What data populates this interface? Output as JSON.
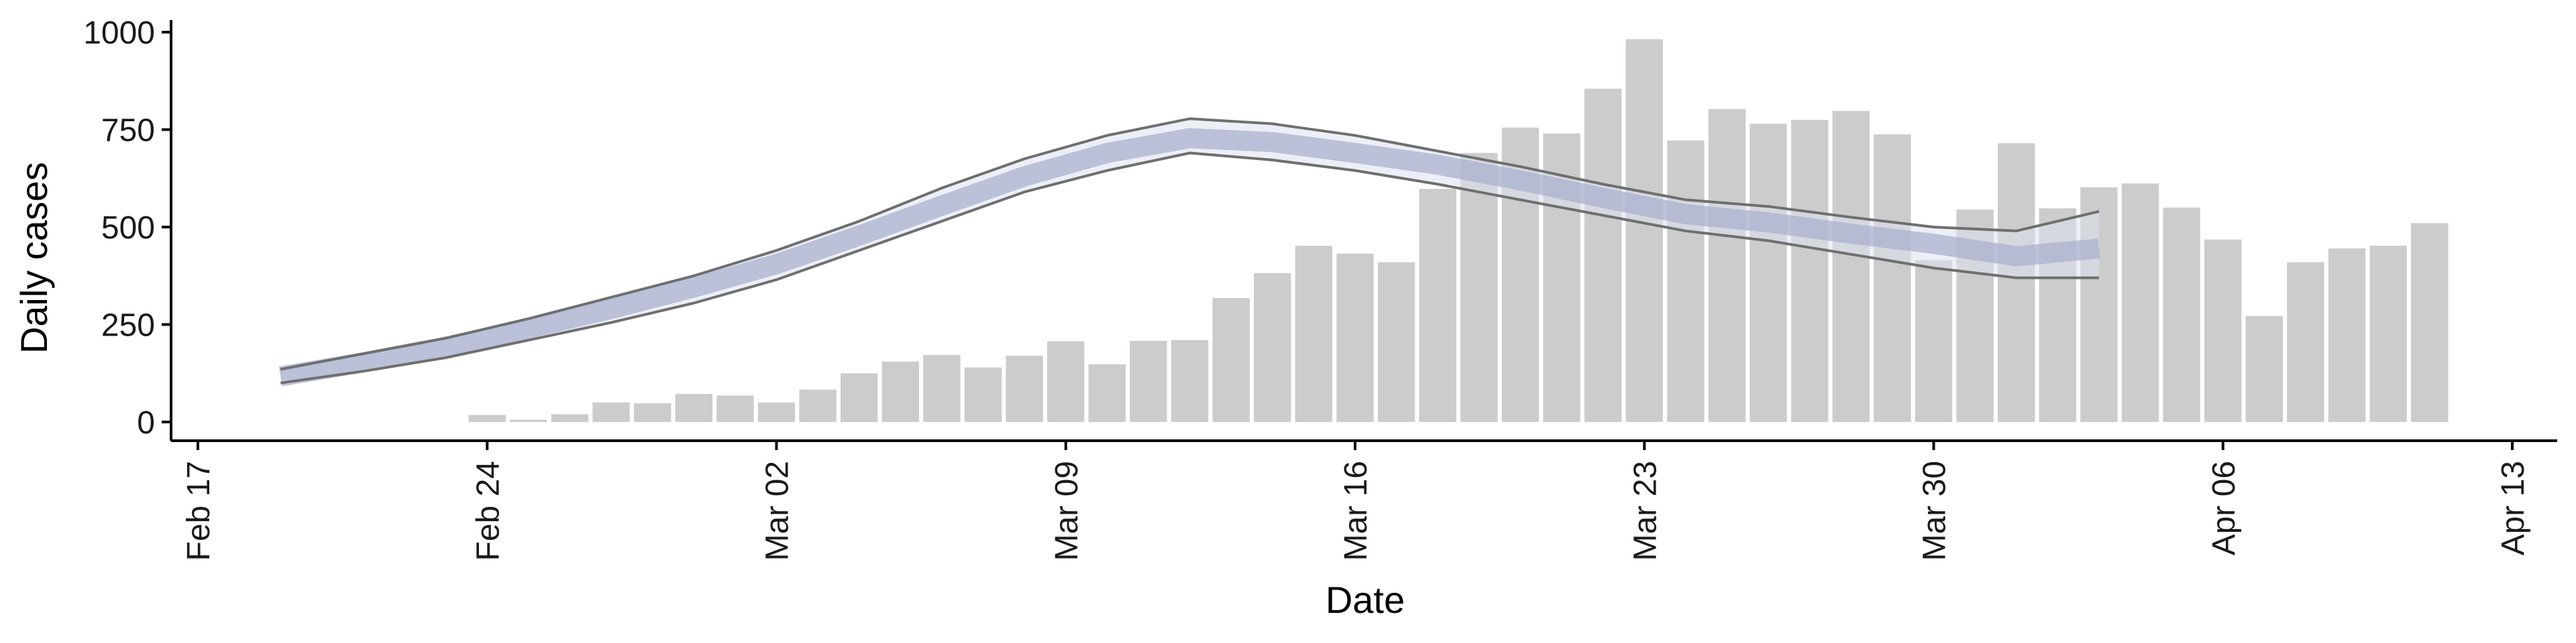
{
  "chart_data": {
    "type": "bar",
    "xlabel": "Date",
    "ylabel": "Daily cases",
    "ylim": [
      0,
      1000
    ],
    "y_ticks": [
      0,
      250,
      500,
      750,
      1000
    ],
    "x_range": [
      "2020-02-17",
      "2020-04-13"
    ],
    "x_ticks": [
      {
        "date": "2020-02-17",
        "label": "Feb 17"
      },
      {
        "date": "2020-02-24",
        "label": "Feb 24"
      },
      {
        "date": "2020-03-02",
        "label": "Mar 02"
      },
      {
        "date": "2020-03-09",
        "label": "Mar 09"
      },
      {
        "date": "2020-03-16",
        "label": "Mar 16"
      },
      {
        "date": "2020-03-23",
        "label": "Mar 23"
      },
      {
        "date": "2020-03-30",
        "label": "Mar 30"
      },
      {
        "date": "2020-04-06",
        "label": "Apr 06"
      },
      {
        "date": "2020-04-13",
        "label": "Apr 13"
      }
    ],
    "grid": false,
    "colors": {
      "bars": "#cccccc",
      "ribbon_outer": "#dde1ee",
      "ribbon_inner": "#a9b2cf",
      "interval_line": "#6f6f6f"
    },
    "bars": {
      "dates": [
        "2020-02-24",
        "2020-02-25",
        "2020-02-26",
        "2020-02-27",
        "2020-02-28",
        "2020-02-29",
        "2020-03-01",
        "2020-03-02",
        "2020-03-03",
        "2020-03-04",
        "2020-03-05",
        "2020-03-06",
        "2020-03-07",
        "2020-03-08",
        "2020-03-09",
        "2020-03-10",
        "2020-03-11",
        "2020-03-12",
        "2020-03-13",
        "2020-03-14",
        "2020-03-15",
        "2020-03-16",
        "2020-03-17",
        "2020-03-18",
        "2020-03-19",
        "2020-03-20",
        "2020-03-21",
        "2020-03-22",
        "2020-03-23",
        "2020-03-24",
        "2020-03-25",
        "2020-03-26",
        "2020-03-27",
        "2020-03-28",
        "2020-03-29",
        "2020-03-30",
        "2020-03-31",
        "2020-04-01",
        "2020-04-02",
        "2020-04-03",
        "2020-04-04",
        "2020-04-05",
        "2020-04-06",
        "2020-04-07",
        "2020-04-08",
        "2020-04-09",
        "2020-04-10",
        "2020-04-11"
      ],
      "values": [
        18,
        6,
        20,
        50,
        48,
        72,
        68,
        50,
        83,
        125,
        155,
        172,
        140,
        170,
        207,
        148,
        208,
        210,
        318,
        382,
        452,
        432,
        410,
        598,
        690,
        755,
        740,
        855,
        982,
        722,
        803,
        765,
        775,
        798,
        738,
        415,
        545,
        715,
        548,
        602,
        612,
        550,
        468,
        272,
        410,
        445,
        452,
        510
      ]
    },
    "series": [
      {
        "dates": [
          "2020-02-19",
          "2020-02-21",
          "2020-02-23",
          "2020-02-25",
          "2020-02-27",
          "2020-02-29",
          "2020-03-02",
          "2020-03-04",
          "2020-03-06",
          "2020-03-08",
          "2020-03-10",
          "2020-03-12",
          "2020-03-14",
          "2020-03-16",
          "2020-03-18",
          "2020-03-20",
          "2020-03-22",
          "2020-03-24",
          "2020-03-26",
          "2020-03-28",
          "2020-03-30",
          "2020-04-01",
          "2020-04-03"
        ],
        "upper": [
          135,
          175,
          215,
          265,
          320,
          375,
          440,
          515,
          600,
          675,
          735,
          778,
          765,
          735,
          695,
          655,
          610,
          570,
          553,
          525,
          500,
          490,
          540
        ],
        "median": [
          117,
          153,
          193,
          240,
          290,
          345,
          405,
          478,
          555,
          630,
          690,
          728,
          718,
          690,
          660,
          620,
          575,
          533,
          512,
          483,
          457,
          425,
          445
        ],
        "lower": [
          100,
          130,
          165,
          210,
          255,
          305,
          365,
          440,
          515,
          590,
          645,
          690,
          672,
          645,
          610,
          570,
          530,
          490,
          465,
          430,
          395,
          370,
          370
        ]
      }
    ]
  }
}
